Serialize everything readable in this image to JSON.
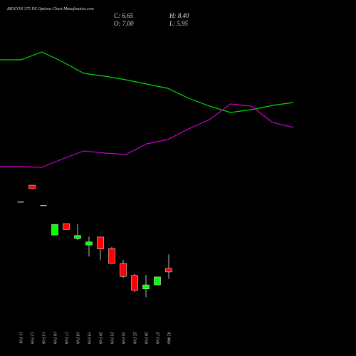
{
  "chart_data": {
    "type": "candlestick",
    "title": "BIOCON 375 PE Options Chart Munafasutra.com",
    "info": [
      "C: 6.65",
      "H: 8.40",
      "O: 7.00",
      "L: 5.95"
    ],
    "categories": [
      "11 Feb",
      "12 Feb",
      "13 Feb",
      "16 Feb",
      "17 Feb",
      "18 Feb",
      "19 Feb",
      "20 Feb",
      "23 Feb",
      "24 Feb",
      "25 Feb",
      "26 Feb",
      "27 Feb",
      "02 Mar"
    ],
    "open": [
      13.7,
      15.35,
      13.35,
      10.35,
      11.5,
      10.0,
      9.35,
      10.15,
      9.0,
      7.5,
      6.3,
      4.95,
      5.35,
      7.0
    ],
    "high": [
      13.7,
      15.35,
      13.35,
      11.4,
      11.5,
      11.45,
      10.2,
      10.15,
      9.15,
      7.85,
      6.45,
      6.35,
      6.15,
      8.4
    ],
    "low": [
      13.7,
      15.0,
      13.35,
      10.35,
      10.9,
      9.85,
      8.2,
      7.85,
      7.5,
      6.05,
      4.65,
      4.1,
      5.35,
      5.95
    ],
    "close": [
      13.7,
      15.0,
      13.35,
      11.4,
      10.9,
      10.3,
      9.65,
      8.95,
      7.5,
      6.2,
      4.8,
      5.35,
      6.15,
      6.65
    ],
    "ylim": [
      3.93,
      16.07
    ],
    "up_color": "#00ff00",
    "down_color": "#ff0000",
    "flat_color": "#cccccc",
    "lines": {
      "x": [
        0,
        1,
        2,
        3,
        4,
        5,
        6,
        7,
        8,
        9,
        10,
        11,
        12,
        13,
        14
      ],
      "xlim": [
        0,
        14
      ],
      "y2lim": [
        0,
        100
      ],
      "series": [
        {
          "color": "#00dd00",
          "values": [
            83,
            83,
            88.5,
            81.5,
            73.5,
            71.5,
            69,
            66,
            63,
            56,
            50.5,
            46,
            48,
            51,
            53
          ]
        },
        {
          "color": "#cc00cc",
          "values": [
            8,
            8,
            7.5,
            13.5,
            19,
            17.5,
            16.5,
            24,
            27,
            34.5,
            41,
            52,
            50.5,
            39,
            35.5
          ]
        }
      ]
    }
  }
}
